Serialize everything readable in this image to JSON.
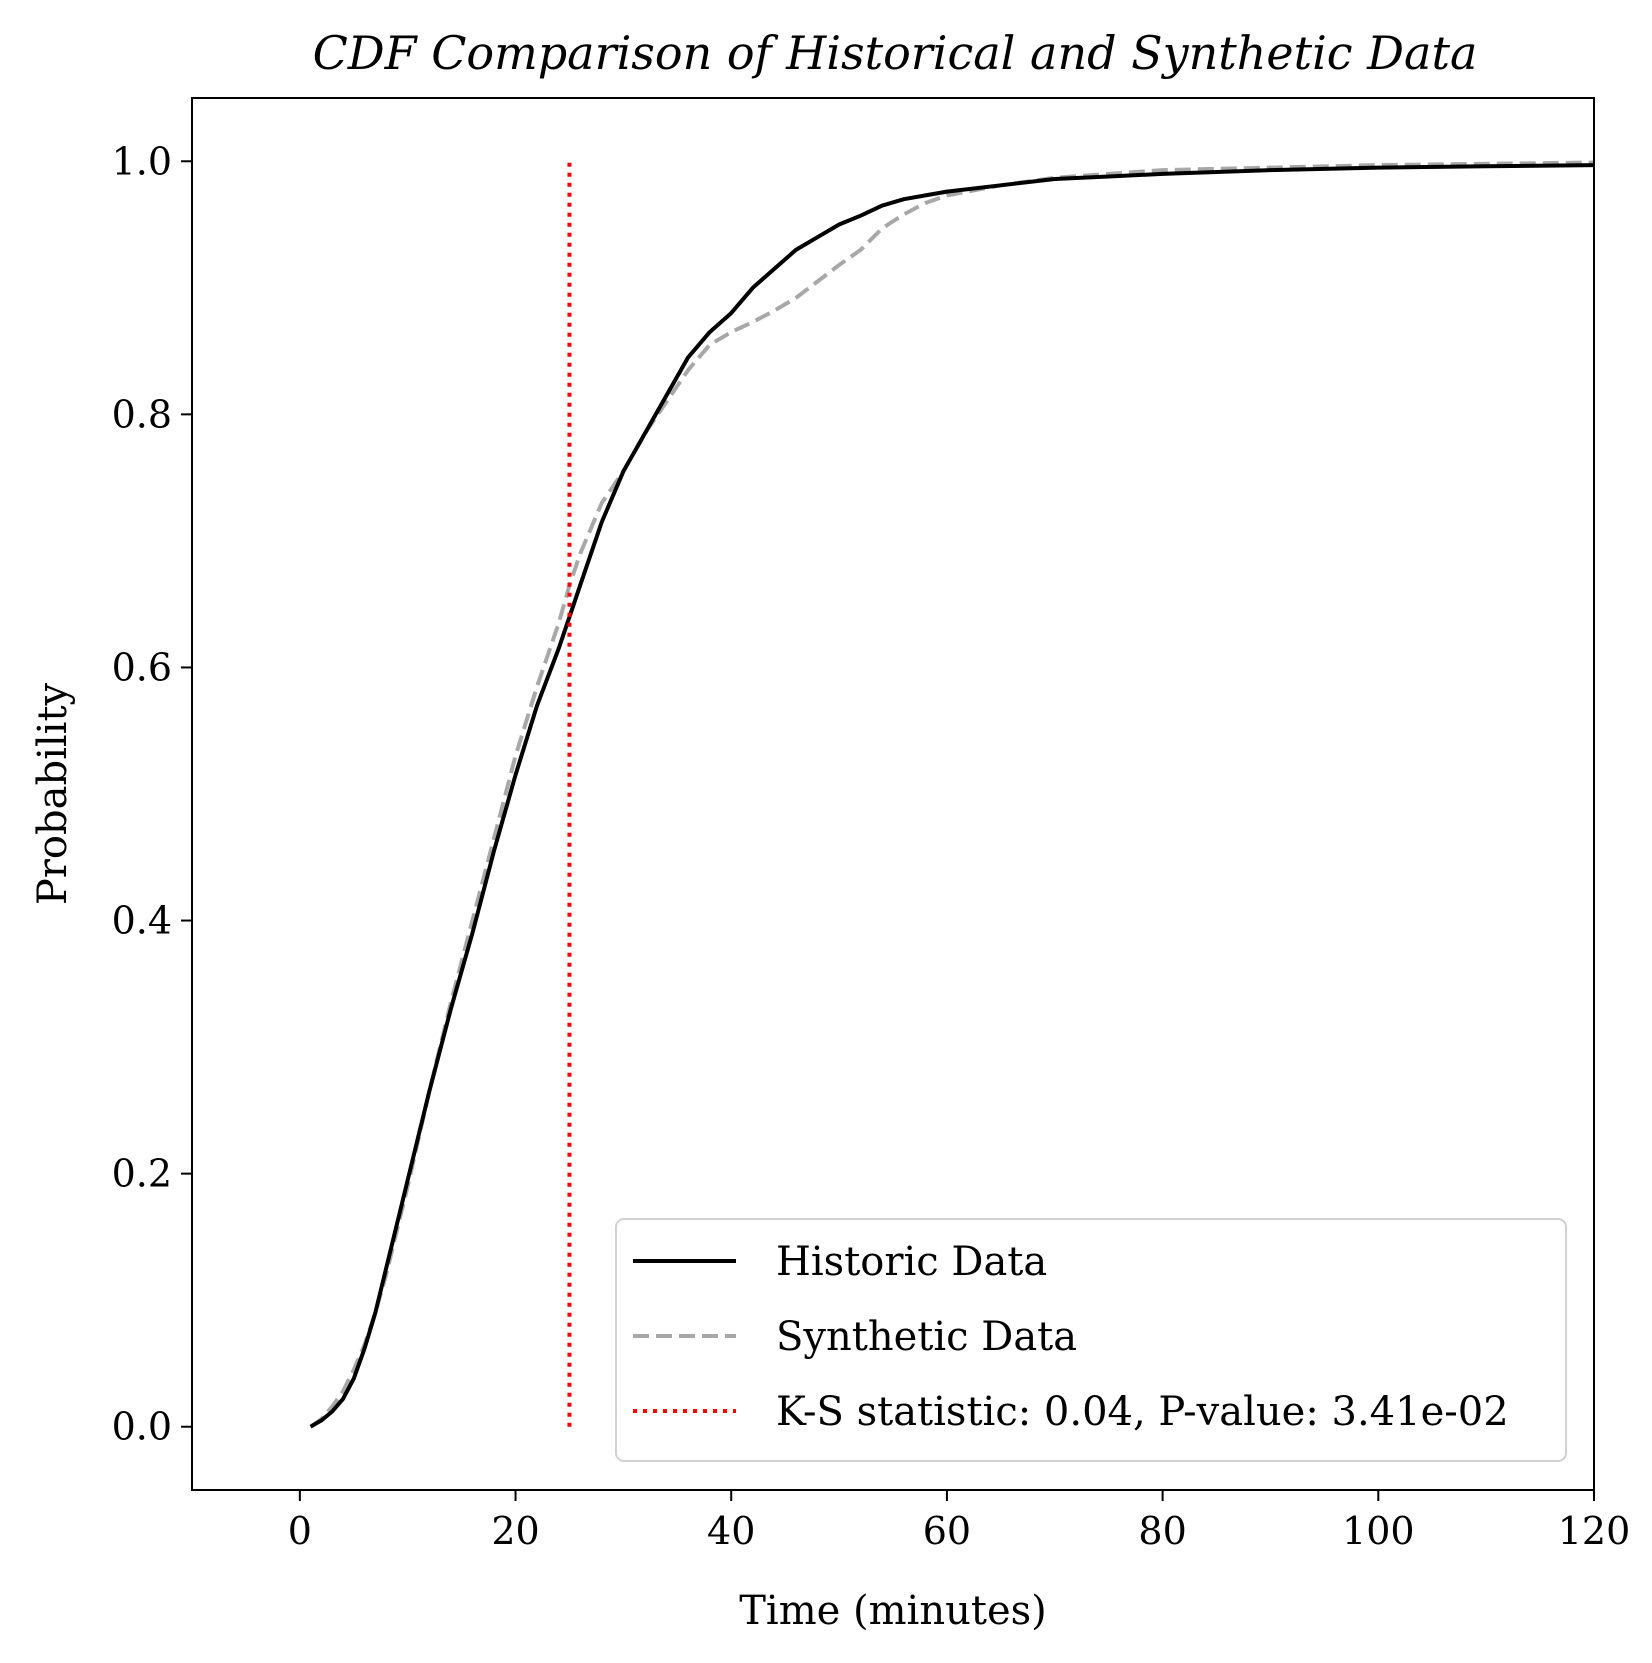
{
  "chart_data": {
    "type": "line",
    "title": "CDF Comparison of Historical and Synthetic Data",
    "xlabel": "Time (minutes)",
    "ylabel": "Probability",
    "xlim": [
      -10,
      120
    ],
    "ylim": [
      -0.05,
      1.05
    ],
    "xticks": [
      0,
      20,
      40,
      60,
      80,
      100,
      120
    ],
    "yticks": [
      0.0,
      0.2,
      0.4,
      0.6,
      0.8,
      1.0
    ],
    "xtick_labels": [
      "0",
      "20",
      "40",
      "60",
      "80",
      "100",
      "120"
    ],
    "ytick_labels": [
      "0.0",
      "0.2",
      "0.4",
      "0.6",
      "0.8",
      "1.0"
    ],
    "grid": false,
    "legend_position": "bottom-right",
    "series": [
      {
        "name": "Historic Data",
        "color": "#000000",
        "style": "solid",
        "x": [
          1,
          2,
          3,
          4,
          5,
          6,
          7,
          8,
          9,
          10,
          12,
          14,
          16,
          18,
          20,
          22,
          24,
          25,
          26,
          28,
          30,
          32,
          34,
          36,
          38,
          40,
          42,
          44,
          46,
          48,
          50,
          52,
          54,
          56,
          58,
          60,
          65,
          70,
          75,
          80,
          90,
          100,
          110,
          120
        ],
        "y": [
          0.0,
          0.005,
          0.012,
          0.022,
          0.038,
          0.062,
          0.09,
          0.125,
          0.16,
          0.195,
          0.265,
          0.33,
          0.39,
          0.455,
          0.515,
          0.57,
          0.615,
          0.64,
          0.665,
          0.715,
          0.755,
          0.785,
          0.815,
          0.845,
          0.865,
          0.88,
          0.9,
          0.915,
          0.93,
          0.94,
          0.95,
          0.957,
          0.965,
          0.97,
          0.973,
          0.976,
          0.981,
          0.986,
          0.988,
          0.99,
          0.993,
          0.995,
          0.996,
          0.997
        ]
      },
      {
        "name": "Synthetic Data",
        "color": "#a8a8a8",
        "style": "dashed",
        "x": [
          1,
          2,
          3,
          4,
          5,
          6,
          7,
          8,
          9,
          10,
          12,
          14,
          16,
          18,
          20,
          22,
          24,
          25,
          26,
          28,
          30,
          32,
          34,
          36,
          38,
          40,
          42,
          44,
          46,
          48,
          50,
          52,
          54,
          56,
          58,
          60,
          65,
          70,
          75,
          80,
          90,
          100,
          110,
          120
        ],
        "y": [
          0.0,
          0.006,
          0.016,
          0.028,
          0.045,
          0.065,
          0.09,
          0.12,
          0.155,
          0.19,
          0.265,
          0.335,
          0.4,
          0.465,
          0.53,
          0.585,
          0.635,
          0.665,
          0.69,
          0.73,
          0.755,
          0.785,
          0.81,
          0.835,
          0.855,
          0.865,
          0.873,
          0.882,
          0.892,
          0.905,
          0.918,
          0.93,
          0.947,
          0.958,
          0.967,
          0.973,
          0.981,
          0.987,
          0.99,
          0.993,
          0.995,
          0.997,
          0.998,
          0.999
        ]
      }
    ],
    "vline": {
      "name": "K-S statistic: 0.04, P-value: 3.41e-02",
      "x": 25,
      "y0": 0.0,
      "y1": 1.0,
      "color": "#ff0000",
      "style": "dotted"
    }
  }
}
